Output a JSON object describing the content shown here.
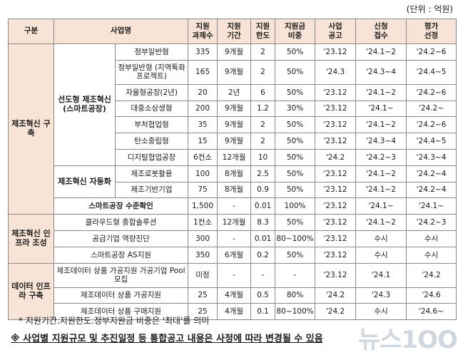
{
  "unit": "(단위 : 억원)",
  "headers": {
    "category": "구분",
    "program": "사업명",
    "tasks": [
      "지원",
      "과제수"
    ],
    "period": [
      "지원",
      "기간"
    ],
    "limit": [
      "지원",
      "한도"
    ],
    "ratio": [
      "지원금",
      "비중"
    ],
    "announce": [
      "사업",
      "공고"
    ],
    "apply": [
      "신청",
      "접수"
    ],
    "select": [
      "평가",
      "선정"
    ]
  },
  "groups": {
    "g1": "제조혁신 구축",
    "g1a": "선도형 제조혁신 (스마트공장)",
    "g1b": "제조혁신 자동화",
    "g2": "제조혁신 인프라 조성",
    "g3": "데이터 인프라 구축"
  },
  "rows": [
    {
      "name": "정부일반형",
      "tasks": "335",
      "period": "9개월",
      "limit": "2",
      "ratio": "50%",
      "announce": "'23.12",
      "apply": "'24.1~2",
      "select": "'24.2~6"
    },
    {
      "name": "정부일반형 (지역특화프로젝트)",
      "tasks": "165",
      "period": "9개월",
      "limit": "2",
      "ratio": "50%",
      "announce": "'24.3",
      "apply": "'24.3~4",
      "select": "'24.4~5"
    },
    {
      "name": "자율형공장(2년)",
      "tasks": "20",
      "period": "2년",
      "limit": "6",
      "ratio": "50%",
      "announce": "'23.12",
      "apply": "'24.1~2",
      "select": "'24.2~6"
    },
    {
      "name": "대중소상생형",
      "tasks": "200",
      "period": "9개월",
      "limit": "1.2",
      "ratio": "30%",
      "announce": "'23.12",
      "apply": "'24.1~",
      "select": "'24.2~"
    },
    {
      "name": "부처협업형",
      "tasks": "35",
      "period": "9개월",
      "limit": "2",
      "ratio": "50%",
      "announce": "'23.12",
      "apply": "'24.1~2",
      "select": "'24.2~6"
    },
    {
      "name": "탄소중립형",
      "tasks": "15",
      "period": "9개월",
      "limit": "2",
      "ratio": "50%",
      "announce": "'23.12",
      "apply": "'24.3~4",
      "select": "'24.4~5"
    },
    {
      "name": "디지털협업공장",
      "tasks": "6컨소",
      "period": "12개월",
      "limit": "10",
      "ratio": "50%",
      "announce": "'24.2",
      "apply": "'24.2~3",
      "select": "'24.3~4"
    },
    {
      "name": "제조로봇활용",
      "tasks": "100",
      "period": "8개월",
      "limit": "2.5",
      "ratio": "50%",
      "announce": "'23.12",
      "apply": "'24.1~2",
      "select": "'24.2~4"
    },
    {
      "name": "제조기반기업",
      "tasks": "75",
      "period": "8개월",
      "limit": "0.9",
      "ratio": "50%",
      "announce": "'23.12",
      "apply": "'24.1~2",
      "select": "'24.2~4"
    },
    {
      "name": "스마트공장 수준확인",
      "tasks": "1,500",
      "period": "-",
      "limit": "0.01",
      "ratio": "100%",
      "announce": "'23.12",
      "apply": "'24.1~",
      "select": "'24.1~"
    },
    {
      "name": "클라우드형 종합솔루션",
      "tasks": "1컨소",
      "period": "12개월",
      "limit": "8.3",
      "ratio": "50%",
      "announce": "'23.12",
      "apply": "'24.1~2",
      "select": "'24.2~3"
    },
    {
      "name": "공급기업 역량진단",
      "tasks": "300",
      "period": "-",
      "limit": "0.01",
      "ratio": "80~100%",
      "announce": "'23.12",
      "apply": "수시",
      "select": "수시"
    },
    {
      "name": "스마트공장 AS지원",
      "tasks": "350",
      "period": "6개월",
      "limit": "0.2",
      "ratio": "50%",
      "announce": "'23.12",
      "apply": "수시",
      "select": "수시"
    },
    {
      "name": "제조데이터 상품 가공지원 가공기업 Pool 모집",
      "tasks": "미정",
      "period": "-",
      "limit": "-",
      "ratio": "-",
      "announce": "'23.12",
      "apply": "'24.1",
      "select": "'24.2"
    },
    {
      "name": "제조데이터 상품 가공지원",
      "tasks": "25",
      "period": "4개월",
      "limit": "0.5",
      "ratio": "80%",
      "announce": "'24.2",
      "apply": "'24.3",
      "select": "'24.6"
    },
    {
      "name": "제조데이터 상품 구매지원",
      "tasks": "25",
      "period": "4개월",
      "limit": "0.1",
      "ratio": "80~100%",
      "announce": "'24.2",
      "apply": "수시",
      "select": "'24.6~"
    }
  ],
  "note1": "* 지원기간.지원한도.정부지원금 비중은 '최대'를 의미",
  "note2": "※ 사업별 지원규모 및 추진일정 등 통합공고 내용은 사정에 따라 변경될 수 있음",
  "watermark": "뉴스1OO"
}
